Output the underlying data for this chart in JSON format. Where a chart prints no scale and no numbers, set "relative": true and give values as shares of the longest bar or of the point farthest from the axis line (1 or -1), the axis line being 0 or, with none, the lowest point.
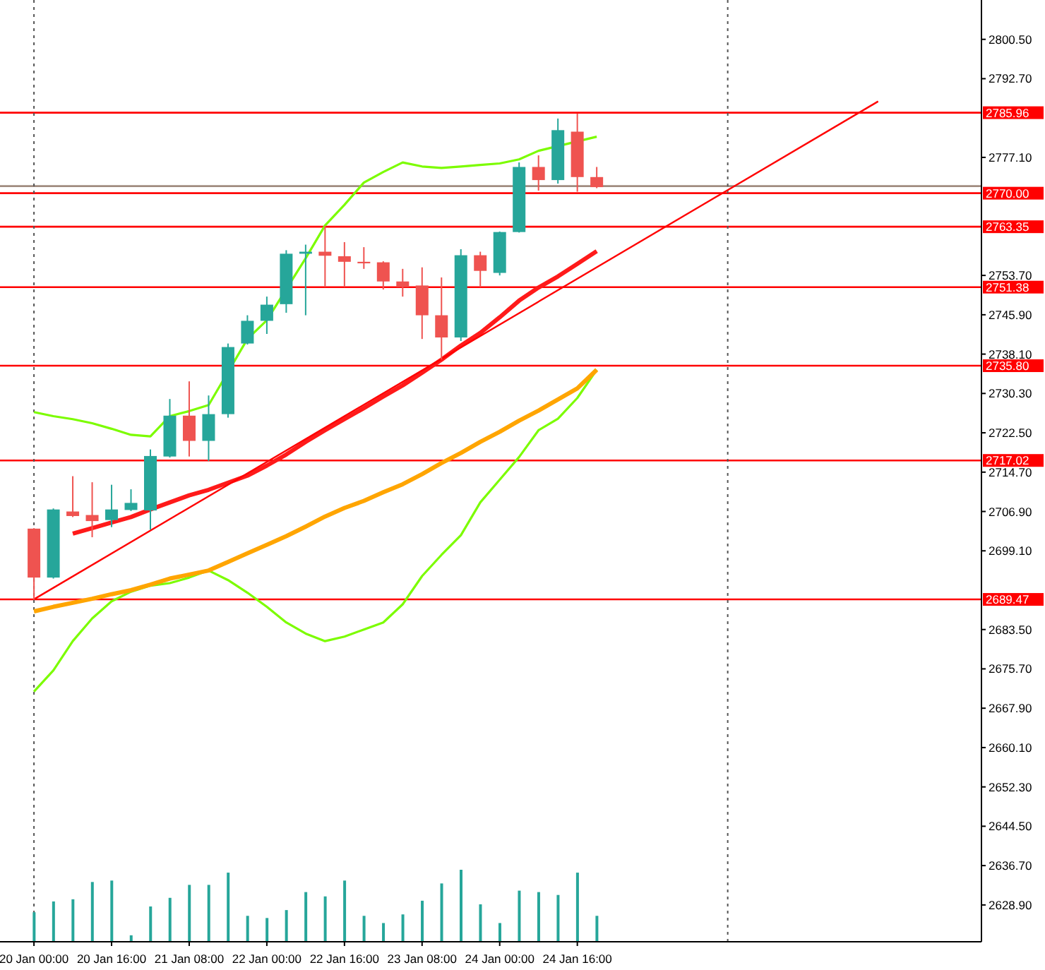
{
  "chart_data": [
    {
      "type": "candlestick",
      "x": [
        "--01-20T00:00",
        "--01-20T04:00",
        "--01-20T08:00",
        "--01-20T12:00",
        "--01-20T16:00",
        "--01-20T20:00",
        "--01-21T00:00",
        "--01-21T04:00",
        "--01-21T08:00",
        "--01-21T12:00",
        "--01-21T16:00",
        "--01-21T20:00",
        "--01-22T00:00",
        "--01-22T04:00",
        "--01-22T08:00",
        "--01-22T12:00",
        "--01-22T16:00",
        "--01-22T20:00",
        "--01-23T00:00",
        "--01-23T04:00",
        "--01-23T08:00",
        "--01-23T12:00",
        "--01-23T16:00",
        "--01-23T20:00",
        "--01-24T00:00",
        "--01-24T04:00",
        "--01-24T08:00",
        "--01-24T12:00",
        "--01-24T16:00",
        "--01-24T20:00"
      ],
      "ohlc": [
        [
          2703.5,
          2703.6,
          2689.4,
          2693.8
        ],
        [
          2693.8,
          2707.5,
          2693.6,
          2707.3
        ],
        [
          2706.9,
          2713.9,
          2705.8,
          2706.0
        ],
        [
          2706.2,
          2712.7,
          2701.8,
          2705.0
        ],
        [
          2705.2,
          2712.2,
          2703.8,
          2707.3
        ],
        [
          2707.2,
          2711.3,
          2707.0,
          2708.6
        ],
        [
          2707.1,
          2719.2,
          2703.3,
          2717.9
        ],
        [
          2717.8,
          2729.2,
          2717.6,
          2725.9
        ],
        [
          2725.9,
          2732.7,
          2717.8,
          2720.9
        ],
        [
          2720.9,
          2729.9,
          2716.9,
          2726.2
        ],
        [
          2726.2,
          2740.2,
          2725.5,
          2739.5
        ],
        [
          2740.2,
          2745.8,
          2740.0,
          2744.7
        ],
        [
          2744.7,
          2749.5,
          2742.1,
          2747.9
        ],
        [
          2748.0,
          2758.7,
          2746.3,
          2758.0
        ],
        [
          2758.0,
          2759.8,
          2745.8,
          2758.4
        ],
        [
          2758.4,
          2763.5,
          2751.4,
          2757.6
        ],
        [
          2757.5,
          2760.3,
          2751.4,
          2756.4
        ],
        [
          2756.4,
          2759.3,
          2755.0,
          2756.1
        ],
        [
          2756.3,
          2756.5,
          2750.9,
          2752.5
        ],
        [
          2752.5,
          2755.0,
          2749.5,
          2751.4
        ],
        [
          2751.7,
          2755.3,
          2741.1,
          2745.8
        ],
        [
          2745.8,
          2753.3,
          2737.0,
          2741.4
        ],
        [
          2741.4,
          2758.9,
          2740.7,
          2757.7
        ],
        [
          2757.7,
          2758.4,
          2751.4,
          2754.6
        ],
        [
          2754.2,
          2762.4,
          2753.7,
          2762.3
        ],
        [
          2762.3,
          2776.1,
          2762.2,
          2775.2
        ],
        [
          2775.2,
          2777.5,
          2770.5,
          2772.6
        ],
        [
          2772.6,
          2784.8,
          2771.9,
          2782.5
        ],
        [
          2782.2,
          2785.8,
          2770.3,
          2773.2
        ],
        [
          2773.2,
          2775.2,
          2771.0,
          2771.2
        ]
      ],
      "colors": [
        "#ef5350",
        "#26a69a",
        "#ef5350",
        "#ef5350",
        "#26a69a",
        "#26a69a",
        "#26a69a",
        "#26a69a",
        "#ef5350",
        "#26a69a",
        "#26a69a",
        "#26a69a",
        "#26a69a",
        "#26a69a",
        "#26a69a",
        "#ef5350",
        "#ef5350",
        "#ef5350",
        "#ef5350",
        "#ef5350",
        "#ef5350",
        "#ef5350",
        "#26a69a",
        "#ef5350",
        "#26a69a",
        "#26a69a",
        "#ef5350",
        "#26a69a",
        "#ef5350",
        "#ef5350"
      ],
      "series": [
        {
          "type": "line",
          "color": "#7cfc00",
          "values": [
            2726.6,
            2725.8,
            2725.2,
            2724.4,
            2723.3,
            2722.1,
            2721.8,
            2725.8,
            2726.8,
            2728.0,
            null,
            2741.1,
            2744.8,
            null,
            2757.1,
            2763.6,
            2767.7,
            2772.1,
            2774.2,
            2776.1,
            2775.3,
            2775.0,
            2775.3,
            2775.6,
            2775.9,
            2776.7,
            2778.4,
            null,
            null,
            2781.2
          ]
        },
        {
          "type": "line",
          "color": "#7cfc00",
          "values": [
            2671.2,
            2675.4,
            2681.2,
            2685.7,
            2689.1,
            2691.0,
            2692.2,
            2692.7,
            2693.8,
            2695.2,
            2693.3,
            2690.8,
            2688.0,
            2684.9,
            2682.7,
            2681.2,
            2682.1,
            2683.5,
            2684.9,
            2688.5,
            2694.1,
            2698.3,
            2702.2,
            2708.7,
            2713.2,
            2717.7,
            2723.0,
            2725.3,
            2729.4,
            2735.0
          ]
        },
        {
          "type": "line",
          "color": "#ff1a1a",
          "values": [
            null,
            null,
            2702.5,
            2703.6,
            2704.7,
            2705.8,
            2707.3,
            2708.7,
            2710.1,
            2711.2,
            2712.6,
            2714.0,
            2716.0,
            2718.2,
            2720.7,
            2723.0,
            2725.2,
            2727.4,
            2729.7,
            2731.9,
            2734.4,
            2737.0,
            2739.8,
            2742.3,
            2745.4,
            2748.7,
            2751.3,
            2753.5,
            2756.0,
            2758.5
          ]
        },
        {
          "type": "line",
          "color": "#ffa500",
          "values": [
            2687.1,
            2688.0,
            2688.8,
            2689.6,
            2690.5,
            2691.3,
            2692.4,
            2693.6,
            2694.4,
            2695.2,
            2696.9,
            2698.6,
            2700.3,
            2702.0,
            2703.9,
            2705.9,
            2707.6,
            2709.0,
            2710.7,
            2712.3,
            2714.3,
            2716.5,
            2718.5,
            2720.7,
            2722.7,
            2724.9,
            2726.9,
            2729.1,
            2731.3,
            2735.0
          ]
        },
        {
          "type": "line",
          "color": "#ff0000",
          "x": [
            "--01-20T00:00",
            "--01-27T06:00"
          ],
          "values": [
            2689.5,
            2788.2
          ]
        }
      ],
      "xlim": [
        "--01-19T17:00",
        "--01-28T03:18"
      ],
      "ylim": [
        2621.6,
        2808.3
      ],
      "xticks": [
        {
          "value": "--01-20T00:00",
          "label": "20 Jan 00:00"
        },
        {
          "value": "--01-20T16:00",
          "label": "20 Jan 16:00"
        },
        {
          "value": "--01-21T08:00",
          "label": "21 Jan 08:00"
        },
        {
          "value": "--01-22T00:00",
          "label": "22 Jan 00:00"
        },
        {
          "value": "--01-22T16:00",
          "label": "22 Jan 16:00"
        },
        {
          "value": "--01-23T08:00",
          "label": "23 Jan 08:00"
        },
        {
          "value": "--01-24T00:00",
          "label": "24 Jan 00:00"
        },
        {
          "value": "--01-24T16:00",
          "label": "24 Jan 16:00"
        }
      ],
      "yticks": [
        {
          "value": 2628.9,
          "label": "2628.90"
        },
        {
          "value": 2636.7,
          "label": "2636.70"
        },
        {
          "value": 2644.5,
          "label": "2644.50"
        },
        {
          "value": 2652.3,
          "label": "2652.30"
        },
        {
          "value": 2660.1,
          "label": "2660.10"
        },
        {
          "value": 2667.9,
          "label": "2667.90"
        },
        {
          "value": 2675.7,
          "label": "2675.70"
        },
        {
          "value": 2683.5,
          "label": "2683.50"
        },
        {
          "value": 2699.1,
          "label": "2699.10"
        },
        {
          "value": 2706.9,
          "label": "2706.90"
        },
        {
          "value": 2714.7,
          "label": "2714.70"
        },
        {
          "value": 2722.5,
          "label": "2722.50"
        },
        {
          "value": 2730.3,
          "label": "2730.30"
        },
        {
          "value": 2738.1,
          "label": "2738.10"
        },
        {
          "value": 2745.9,
          "label": "2745.90"
        },
        {
          "value": 2753.7,
          "label": "2753.70"
        },
        {
          "value": 2777.1,
          "label": "2777.10"
        },
        {
          "value": 2792.7,
          "label": "2792.70"
        },
        {
          "value": 2800.5,
          "label": "2800.50"
        }
      ],
      "ref_lines": [
        {
          "axis": "y",
          "value": 2785.96,
          "label": "2785.96",
          "color": "#ff0000"
        },
        {
          "axis": "y",
          "value": 2771.4,
          "color": "#a08c80"
        },
        {
          "axis": "y",
          "value": 2770.0,
          "label": "2770.00",
          "color": "#ff0000"
        },
        {
          "axis": "y",
          "value": 2763.35,
          "label": "2763.35",
          "color": "#ff0000"
        },
        {
          "axis": "y",
          "value": 2751.38,
          "label": "2751.38",
          "color": "#ff0000"
        },
        {
          "axis": "y",
          "value": 2735.8,
          "label": "2735.80",
          "color": "#ff0000"
        },
        {
          "axis": "y",
          "value": 2717.02,
          "label": "2717.02",
          "color": "#ff0000"
        },
        {
          "axis": "y",
          "value": 2689.47,
          "label": "2689.47",
          "color": "#ff0000"
        },
        {
          "axis": "x",
          "value": "--01-20T00:00",
          "color": "#555555",
          "line_style": "dotted"
        },
        {
          "axis": "x",
          "value": "--01-25T23:00",
          "color": "#555555",
          "line_style": "dotted"
        }
      ]
    },
    {
      "type": "bar",
      "relative": true,
      "color": "#26a69a",
      "x": [
        "--01-20T00:00",
        "--01-20T04:00",
        "--01-20T08:00",
        "--01-20T12:00",
        "--01-20T16:00",
        "--01-20T20:00",
        "--01-21T00:00",
        "--01-21T04:00",
        "--01-21T08:00",
        "--01-21T12:00",
        "--01-21T16:00",
        "--01-21T20:00",
        "--01-22T00:00",
        "--01-22T04:00",
        "--01-22T08:00",
        "--01-22T12:00",
        "--01-22T16:00",
        "--01-22T20:00",
        "--01-23T00:00",
        "--01-23T04:00",
        "--01-23T08:00",
        "--01-23T12:00",
        "--01-23T16:00",
        "--01-23T20:00",
        "--01-24T00:00",
        "--01-24T04:00",
        "--01-24T08:00",
        "--01-24T12:00",
        "--01-24T16:00",
        "--01-24T20:00"
      ],
      "xlim": [
        "--01-19T17:00",
        "--01-28T03:18"
      ],
      "values": [
        0.41,
        0.56,
        0.59,
        0.83,
        0.85,
        0.09,
        0.49,
        0.61,
        0.79,
        0.79,
        0.96,
        0.36,
        0.33,
        0.44,
        0.69,
        0.63,
        0.85,
        0.36,
        0.26,
        0.38,
        0.57,
        0.81,
        1,
        0.52,
        0.26,
        0.71,
        0.69,
        0.65,
        0.96,
        0.36
      ]
    }
  ]
}
